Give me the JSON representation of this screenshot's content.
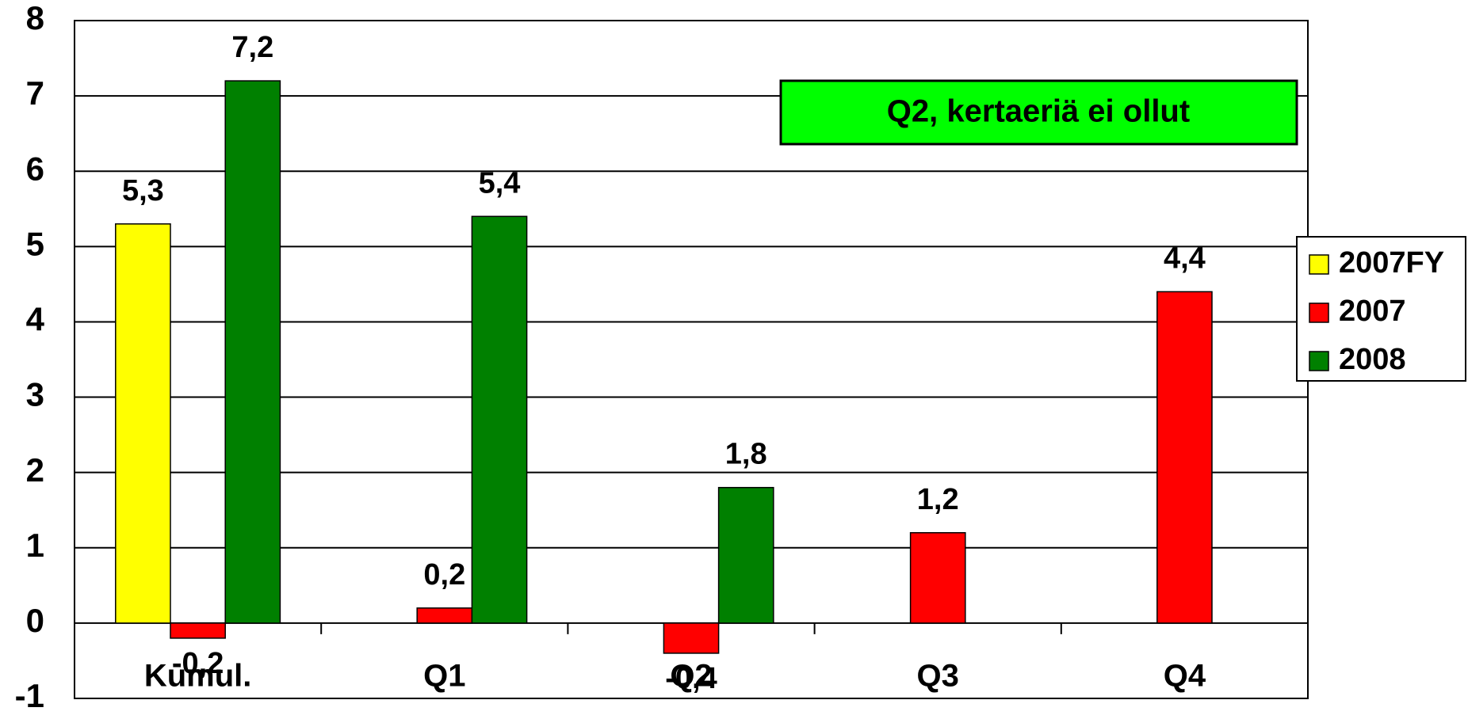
{
  "chart_data": {
    "type": "bar",
    "categories": [
      "Kumul.",
      "Q1",
      "Q2",
      "Q3",
      "Q4"
    ],
    "series": [
      {
        "name": "2007FY",
        "color": "#ffff00",
        "values": [
          5.3,
          null,
          null,
          null,
          null
        ],
        "value_labels": [
          "5,3",
          null,
          null,
          null,
          null
        ]
      },
      {
        "name": "2007",
        "color": "#ff0000",
        "values": [
          -0.2,
          0.2,
          -0.4,
          1.2,
          4.4
        ],
        "value_labels": [
          "-0,2",
          "0,2",
          "-0,4",
          "1,2",
          "4,4"
        ]
      },
      {
        "name": "2008",
        "color": "#008000",
        "values": [
          7.2,
          5.4,
          1.8,
          null,
          null
        ],
        "value_labels": [
          "7,2",
          "5,4",
          "1,8",
          null,
          null
        ]
      }
    ],
    "ylim": [
      -1,
      8
    ],
    "yticks": [
      -1,
      0,
      1,
      2,
      3,
      4,
      5,
      6,
      7,
      8
    ],
    "grid": true,
    "legend": "right",
    "annotation": "Q2, kertaeriä ei ollut",
    "annotation_color": "#00ff00"
  }
}
